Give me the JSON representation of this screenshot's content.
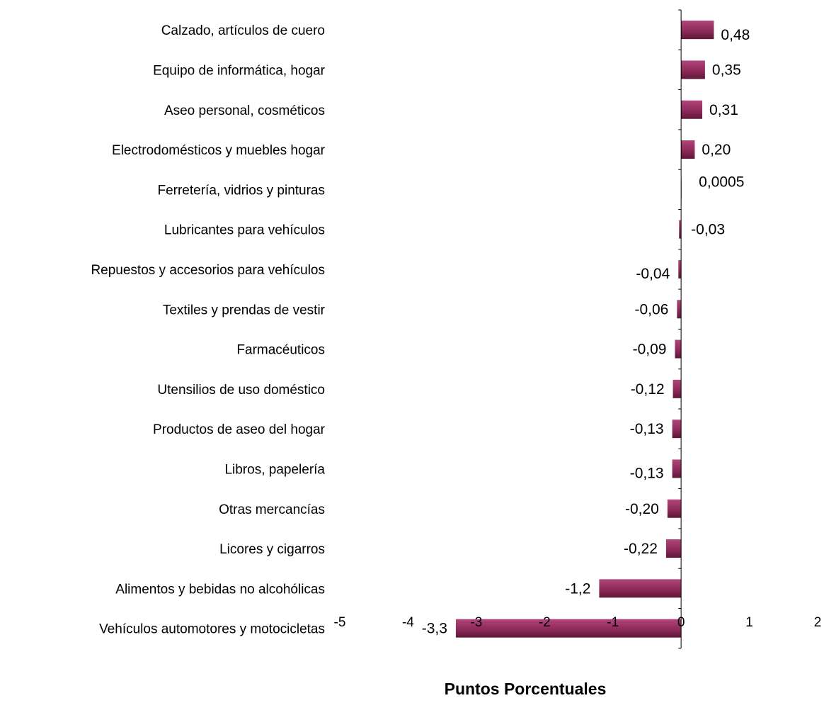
{
  "chart_data": {
    "type": "bar",
    "orientation": "horizontal",
    "xlabel": "Puntos Porcentuales",
    "xlim": [
      -5,
      2
    ],
    "xticks": [
      -5,
      -4,
      -3,
      -2,
      -1,
      0,
      1,
      2
    ],
    "tick_labels": [
      "-5",
      "-4",
      "-3",
      "-2",
      "-1",
      "0",
      "1",
      "2"
    ],
    "grid": false,
    "legend": "none",
    "bar_color": "#8e2a5a",
    "categories": [
      "Calzado, artículos de cuero",
      "Equipo de informática, hogar",
      "Aseo personal, cosméticos",
      "Electrodomésticos y muebles hogar",
      "Ferretería, vidrios y pinturas",
      "Lubricantes para vehículos",
      "Repuestos y accesorios para vehículos",
      "Textiles y prendas de vestir",
      "Farmacéuticos",
      "Utensilios de uso doméstico",
      "Productos de aseo del  hogar",
      "Libros, papelería",
      "Otras mercancías",
      "Licores y cigarros",
      "Alimentos  y bebidas no alcohólicas",
      "Vehículos automotores y motocicletas"
    ],
    "values": [
      0.48,
      0.35,
      0.31,
      0.2,
      0.0005,
      -0.03,
      -0.04,
      -0.06,
      -0.09,
      -0.12,
      -0.13,
      -0.13,
      -0.2,
      -0.22,
      -1.2,
      -3.3
    ],
    "data_labels": [
      "0,48",
      "0,35",
      "0,31",
      "0,20",
      "0,0005",
      "-0,03",
      "-0,04",
      "-0,06",
      "-0,09",
      "-0,12",
      "-0,13",
      "-0,13",
      "-0,20",
      "-0,22",
      "-1,2",
      "-3,3"
    ]
  }
}
